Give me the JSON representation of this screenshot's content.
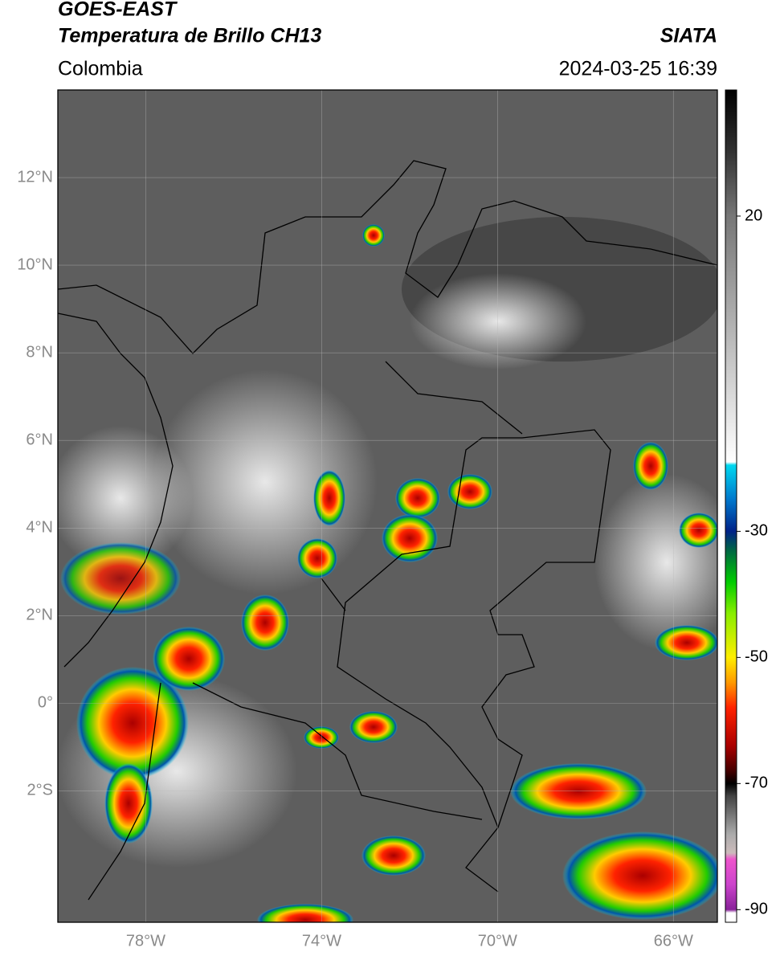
{
  "header": {
    "title_line1": "GOES-EAST",
    "title_line2": "Temperatura de Brillo CH13",
    "region": "Colombia",
    "source": "SIATA",
    "datetime": "2024-03-25 16:39"
  },
  "map": {
    "lon_range": [
      -80,
      -65
    ],
    "lat_range": [
      -5,
      14
    ],
    "lat_ticks": [
      {
        "value": 12,
        "label": "12°N"
      },
      {
        "value": 10,
        "label": "10°N"
      },
      {
        "value": 8,
        "label": "8°N"
      },
      {
        "value": 6,
        "label": "6°N"
      },
      {
        "value": 4,
        "label": "4°N"
      },
      {
        "value": 2,
        "label": "2°N"
      },
      {
        "value": 0,
        "label": "0°"
      },
      {
        "value": -2,
        "label": "2°S"
      }
    ],
    "lon_ticks": [
      {
        "value": -78,
        "label": "78°W"
      },
      {
        "value": -74,
        "label": "74°W"
      },
      {
        "value": -70,
        "label": "70°W"
      },
      {
        "value": -66,
        "label": "66°W"
      }
    ],
    "grid": true
  },
  "colorbar": {
    "range": [
      -92,
      40
    ],
    "ticks": [
      20,
      -30,
      -50,
      -70,
      -90
    ],
    "colormap": [
      [
        40,
        "#000000"
      ],
      [
        30,
        "#333333"
      ],
      [
        20,
        "#777777"
      ],
      [
        0,
        "#bbbbbb"
      ],
      [
        -19,
        "#ffffff"
      ],
      [
        -19.5,
        "#00d8f0"
      ],
      [
        -25,
        "#0077cc"
      ],
      [
        -30,
        "#002288"
      ],
      [
        -33,
        "#006644"
      ],
      [
        -38,
        "#00cc00"
      ],
      [
        -43,
        "#88ee00"
      ],
      [
        -50,
        "#ffee00"
      ],
      [
        -54,
        "#ff9900"
      ],
      [
        -58,
        "#ff2200"
      ],
      [
        -64,
        "#aa0000"
      ],
      [
        -68,
        "#440000"
      ],
      [
        -70,
        "#000000"
      ],
      [
        -72,
        "#444444"
      ],
      [
        -78,
        "#aaaaaa"
      ],
      [
        -81,
        "#ccbbbb"
      ],
      [
        -82,
        "#ee55cc"
      ],
      [
        -86,
        "#cc44cc"
      ],
      [
        -90,
        "#882299"
      ],
      [
        -90.5,
        "#ffffff"
      ],
      [
        -92,
        "#ffffff"
      ]
    ]
  }
}
